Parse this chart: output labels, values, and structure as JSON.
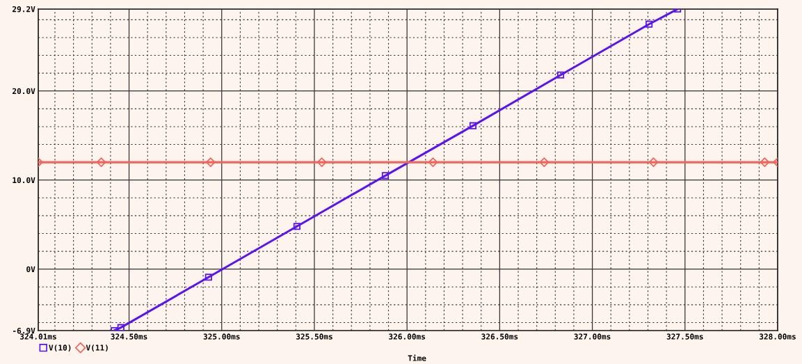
{
  "chart_data": {
    "type": "line",
    "xlabel": "Time",
    "x": [
      324.42,
      324.456,
      324.929,
      325.406,
      325.883,
      326.356,
      326.829,
      327.306,
      327.46
    ],
    "series": [
      {
        "name": "V(10)",
        "color": "#5a14f0",
        "marker": "square",
        "values": [
          -6.9,
          -6.56,
          -0.9,
          4.8,
          10.5,
          16.1,
          21.8,
          27.5,
          29.2
        ]
      },
      {
        "name": "V(11)",
        "color": "#f0645a",
        "marker": "diamond",
        "x": [
          324.01,
          324.35,
          324.94,
          325.54,
          326.14,
          326.74,
          327.33,
          327.93,
          328.0
        ],
        "values": [
          12,
          12,
          12,
          12,
          12,
          12,
          12,
          12,
          12
        ]
      }
    ],
    "xlim": [
      324.01,
      328.0
    ],
    "xticks": [
      {
        "value": 324.01,
        "label": "324.01ms"
      },
      {
        "value": 324.1,
        "label": null
      },
      {
        "value": 324.2,
        "label": null
      },
      {
        "value": 324.3,
        "label": null
      },
      {
        "value": 324.4,
        "label": null
      },
      {
        "value": 324.5,
        "label": "324.50ms"
      },
      {
        "value": 324.6,
        "label": null
      },
      {
        "value": 324.7,
        "label": null
      },
      {
        "value": 324.8,
        "label": null
      },
      {
        "value": 324.9,
        "label": null
      },
      {
        "value": 325.0,
        "label": "325.00ms"
      },
      {
        "value": 325.1,
        "label": null
      },
      {
        "value": 325.2,
        "label": null
      },
      {
        "value": 325.3,
        "label": null
      },
      {
        "value": 325.4,
        "label": null
      },
      {
        "value": 325.5,
        "label": "325.50ms"
      },
      {
        "value": 325.6,
        "label": null
      },
      {
        "value": 325.7,
        "label": null
      },
      {
        "value": 325.8,
        "label": null
      },
      {
        "value": 325.9,
        "label": null
      },
      {
        "value": 326.0,
        "label": "326.00ms"
      },
      {
        "value": 326.1,
        "label": null
      },
      {
        "value": 326.2,
        "label": null
      },
      {
        "value": 326.3,
        "label": null
      },
      {
        "value": 326.4,
        "label": null
      },
      {
        "value": 326.5,
        "label": "326.50ms"
      },
      {
        "value": 326.6,
        "label": null
      },
      {
        "value": 326.7,
        "label": null
      },
      {
        "value": 326.8,
        "label": null
      },
      {
        "value": 326.9,
        "label": null
      },
      {
        "value": 327.0,
        "label": "327.00ms"
      },
      {
        "value": 327.1,
        "label": null
      },
      {
        "value": 327.2,
        "label": null
      },
      {
        "value": 327.3,
        "label": null
      },
      {
        "value": 327.4,
        "label": null
      },
      {
        "value": 327.5,
        "label": "327.50ms"
      },
      {
        "value": 327.6,
        "label": null
      },
      {
        "value": 327.7,
        "label": null
      },
      {
        "value": 327.8,
        "label": null
      },
      {
        "value": 327.9,
        "label": null
      },
      {
        "value": 328.0,
        "label": "328.00ms"
      }
    ],
    "ylim": [
      -6.9,
      29.2
    ],
    "yticks": [
      {
        "value": -6.9,
        "label": "-6.9V"
      },
      {
        "value": -6,
        "label": null
      },
      {
        "value": -4,
        "label": null
      },
      {
        "value": -2,
        "label": null
      },
      {
        "value": 0,
        "label": "0V"
      },
      {
        "value": 2,
        "label": null
      },
      {
        "value": 4,
        "label": null
      },
      {
        "value": 6,
        "label": null
      },
      {
        "value": 8,
        "label": null
      },
      {
        "value": 10,
        "label": "10.0V"
      },
      {
        "value": 14,
        "label": null
      },
      {
        "value": 16,
        "label": null
      },
      {
        "value": 18,
        "label": null
      },
      {
        "value": 20,
        "label": "20.0V"
      },
      {
        "value": 22,
        "label": null
      },
      {
        "value": 24,
        "label": null
      },
      {
        "value": 26,
        "label": null
      },
      {
        "value": 28,
        "label": null
      },
      {
        "value": 29.2,
        "label": "29.2V"
      }
    ],
    "grid": true,
    "legend": "bottom left",
    "line_style": "solid"
  }
}
